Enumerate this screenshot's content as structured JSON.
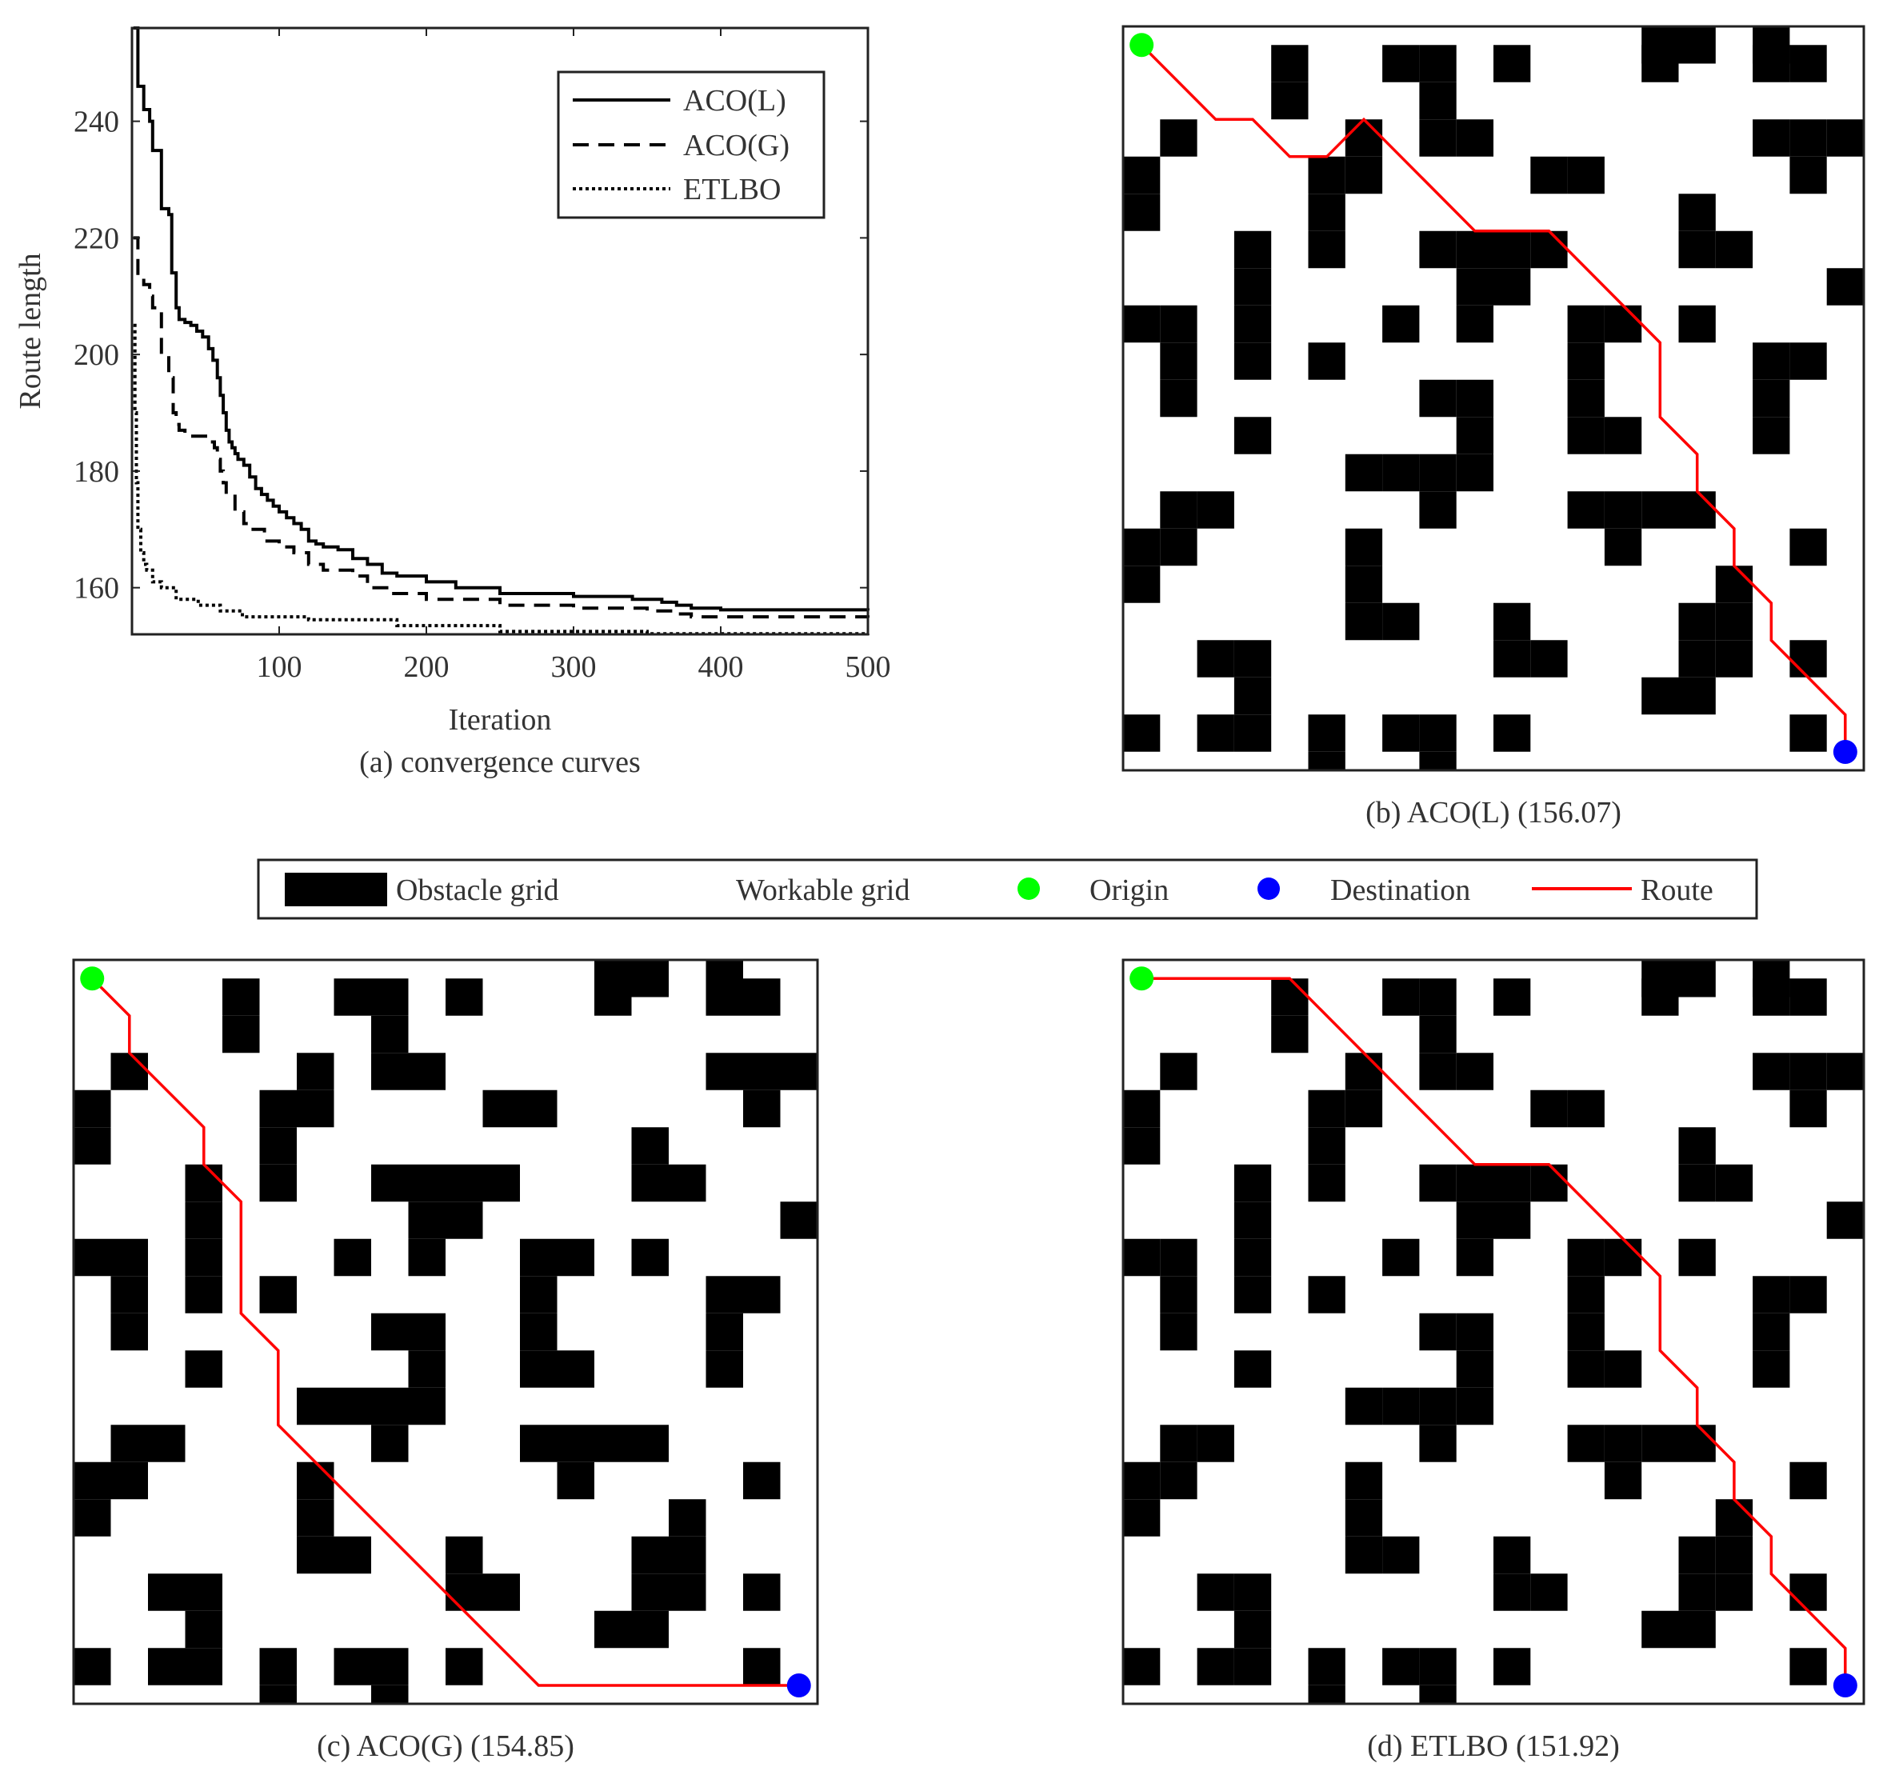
{
  "chart_data": [
    {
      "type": "line",
      "caption": "(a)  convergence curves",
      "xlabel": "Iteration",
      "ylabel": "Route length",
      "xlim": [
        0,
        500
      ],
      "ylim": [
        152,
        256
      ],
      "xticks": [
        100,
        200,
        300,
        400,
        500
      ],
      "yticks": [
        160,
        180,
        200,
        220,
        240
      ],
      "legend_position": "top-right",
      "grid": false,
      "series": [
        {
          "name": "ACO(L)",
          "style": "solid",
          "color": "#000000",
          "x": [
            1,
            4,
            8,
            12,
            14,
            20,
            25,
            27,
            30,
            32,
            36,
            40,
            44,
            48,
            52,
            55,
            58,
            60,
            62,
            64,
            66,
            68,
            70,
            72,
            76,
            80,
            84,
            88,
            92,
            96,
            100,
            105,
            110,
            115,
            120,
            125,
            130,
            140,
            150,
            160,
            170,
            180,
            200,
            220,
            250,
            300,
            340,
            360,
            370,
            380,
            400,
            500
          ],
          "y": [
            256,
            246,
            242,
            240,
            235,
            225,
            224,
            214,
            208,
            206,
            205.5,
            205,
            204,
            203,
            201,
            199,
            196,
            193,
            190,
            187,
            185,
            184,
            183,
            182,
            181,
            179,
            177,
            176,
            175,
            174,
            173,
            172,
            171,
            170,
            168,
            167.5,
            167,
            166.5,
            165,
            164,
            162.5,
            162,
            161,
            160,
            159,
            158.5,
            158,
            157.5,
            157,
            156.5,
            156.2,
            156.07
          ]
        },
        {
          "name": "ACO(G)",
          "style": "dashed",
          "color": "#000000",
          "x": [
            1,
            4,
            8,
            12,
            14,
            20,
            25,
            28,
            30,
            32,
            36,
            40,
            50,
            56,
            58,
            60,
            62,
            64,
            70,
            76,
            80,
            90,
            100,
            110,
            120,
            130,
            150,
            160,
            175,
            200,
            250,
            300,
            350,
            370,
            380,
            500
          ],
          "y": [
            220,
            213,
            212,
            210,
            208,
            200,
            196,
            190,
            188,
            187,
            186.5,
            186,
            185,
            184,
            182,
            180,
            178,
            176,
            173,
            171,
            170,
            168,
            167,
            166,
            164,
            163,
            162,
            160,
            159,
            158,
            157,
            156.5,
            156,
            155.5,
            155,
            154.85
          ]
        },
        {
          "name": "ETLBO",
          "style": "dotted",
          "color": "#000000",
          "x": [
            1,
            2,
            3,
            4,
            6,
            8,
            10,
            14,
            20,
            30,
            45,
            60,
            75,
            120,
            180,
            250,
            350,
            500
          ],
          "y": [
            205,
            190,
            178,
            170,
            166,
            164,
            163,
            161,
            160,
            158,
            157,
            156,
            155,
            154.5,
            153.5,
            152.5,
            152.1,
            151.92
          ]
        }
      ]
    },
    {
      "type": "heatmap",
      "caption": "(b) ACO(L) (156.07)",
      "grid_size": [
        20,
        20
      ],
      "route_color": "#ff0000",
      "route": [
        [
          0.5,
          0.5
        ],
        [
          2.5,
          2.5
        ],
        [
          3.5,
          2.5
        ],
        [
          4.5,
          3.5
        ],
        [
          5.5,
          3.5
        ],
        [
          6.5,
          2.5
        ],
        [
          9.5,
          5.5
        ],
        [
          11.5,
          5.5
        ],
        [
          14.5,
          8.5
        ],
        [
          14.5,
          10.5
        ],
        [
          15.5,
          11.5
        ],
        [
          15.5,
          12.5
        ],
        [
          16.5,
          13.5
        ],
        [
          16.5,
          14.5
        ],
        [
          17.5,
          15.5
        ],
        [
          17.5,
          16.5
        ],
        [
          19.5,
          18.5
        ],
        [
          19.5,
          19.5
        ]
      ]
    },
    {
      "type": "heatmap",
      "caption": "(c) ACO(G) (154.85)",
      "grid_size": [
        20,
        20
      ],
      "route_color": "#ff0000",
      "route": [
        [
          0.5,
          0.5
        ],
        [
          1.5,
          1.5
        ],
        [
          1.5,
          2.5
        ],
        [
          3.5,
          4.5
        ],
        [
          3.5,
          5.5
        ],
        [
          4.5,
          6.5
        ],
        [
          4.5,
          9.5
        ],
        [
          5.5,
          10.5
        ],
        [
          5.5,
          12.5
        ],
        [
          12.5,
          19.5
        ],
        [
          19.5,
          19.5
        ]
      ]
    },
    {
      "type": "heatmap",
      "caption": "(d) ETLBO (151.92)",
      "grid_size": [
        20,
        20
      ],
      "route_color": "#ff0000",
      "route": [
        [
          0.5,
          0.5
        ],
        [
          4.5,
          0.5
        ],
        [
          9.5,
          5.5
        ],
        [
          11.5,
          5.5
        ],
        [
          14.5,
          8.5
        ],
        [
          14.5,
          10.5
        ],
        [
          15.5,
          11.5
        ],
        [
          15.5,
          12.5
        ],
        [
          16.5,
          13.5
        ],
        [
          16.5,
          14.5
        ],
        [
          17.5,
          15.5
        ],
        [
          17.5,
          16.5
        ],
        [
          19.5,
          18.5
        ],
        [
          19.5,
          19.5
        ]
      ]
    }
  ],
  "grid_map": {
    "cols": 20,
    "rows": 20,
    "obstacle_color": "#000000",
    "obstacles": [
      [
        14,
        0
      ],
      [
        15,
        0
      ],
      [
        17,
        0
      ],
      [
        4,
        1
      ],
      [
        7,
        1
      ],
      [
        8,
        1
      ],
      [
        10,
        1
      ],
      [
        14,
        1
      ],
      [
        17,
        1
      ],
      [
        18,
        1
      ],
      [
        4,
        2
      ],
      [
        8,
        2
      ],
      [
        1,
        3
      ],
      [
        8,
        3
      ],
      [
        9,
        3
      ],
      [
        6,
        3
      ],
      [
        17,
        3
      ],
      [
        18,
        3
      ],
      [
        19,
        3
      ],
      [
        0,
        4
      ],
      [
        5,
        4
      ],
      [
        6,
        4
      ],
      [
        11,
        4
      ],
      [
        12,
        4
      ],
      [
        18,
        4
      ],
      [
        0,
        5
      ],
      [
        5,
        5
      ],
      [
        15,
        5
      ],
      [
        3,
        6
      ],
      [
        5,
        6
      ],
      [
        8,
        6
      ],
      [
        9,
        6
      ],
      [
        10,
        6
      ],
      [
        11,
        6
      ],
      [
        15,
        6
      ],
      [
        16,
        6
      ],
      [
        3,
        7
      ],
      [
        9,
        7
      ],
      [
        10,
        7
      ],
      [
        19,
        7
      ],
      [
        0,
        8
      ],
      [
        1,
        8
      ],
      [
        3,
        8
      ],
      [
        7,
        8
      ],
      [
        9,
        8
      ],
      [
        12,
        8
      ],
      [
        13,
        8
      ],
      [
        15,
        8
      ],
      [
        1,
        9
      ],
      [
        3,
        9
      ],
      [
        5,
        9
      ],
      [
        12,
        9
      ],
      [
        17,
        9
      ],
      [
        18,
        9
      ],
      [
        1,
        10
      ],
      [
        8,
        10
      ],
      [
        9,
        10
      ],
      [
        12,
        10
      ],
      [
        17,
        10
      ],
      [
        3,
        11
      ],
      [
        9,
        11
      ],
      [
        12,
        11
      ],
      [
        13,
        11
      ],
      [
        17,
        11
      ],
      [
        6,
        12
      ],
      [
        7,
        12
      ],
      [
        8,
        12
      ],
      [
        9,
        12
      ],
      [
        1,
        13
      ],
      [
        2,
        13
      ],
      [
        8,
        13
      ],
      [
        12,
        13
      ],
      [
        13,
        13
      ],
      [
        14,
        13
      ],
      [
        15,
        13
      ],
      [
        0,
        14
      ],
      [
        1,
        14
      ],
      [
        6,
        14
      ],
      [
        13,
        14
      ],
      [
        18,
        14
      ],
      [
        0,
        15
      ],
      [
        6,
        15
      ],
      [
        16,
        15
      ],
      [
        6,
        16
      ],
      [
        7,
        16
      ],
      [
        10,
        16
      ],
      [
        15,
        16
      ],
      [
        16,
        16
      ],
      [
        2,
        17
      ],
      [
        3,
        17
      ],
      [
        10,
        17
      ],
      [
        11,
        17
      ],
      [
        15,
        17
      ],
      [
        16,
        17
      ],
      [
        18,
        17
      ],
      [
        3,
        18
      ],
      [
        14,
        18
      ],
      [
        15,
        18
      ],
      [
        0,
        19
      ],
      [
        2,
        19
      ],
      [
        3,
        19
      ],
      [
        5,
        19
      ],
      [
        7,
        19
      ],
      [
        8,
        19
      ],
      [
        10,
        19
      ],
      [
        18,
        19
      ],
      [
        5,
        20
      ],
      [
        8,
        20
      ]
    ]
  },
  "legend": {
    "items": [
      {
        "label": "Obstacle grid",
        "marker": "black-rect"
      },
      {
        "label": "Workable grid",
        "marker": "white-rect"
      },
      {
        "label": "Origin",
        "marker": "green-dot",
        "color": "#00ff00"
      },
      {
        "label": "Destination",
        "marker": "blue-dot",
        "color": "#0000ff"
      },
      {
        "label": "Route",
        "marker": "red-line",
        "color": "#ff0000"
      }
    ]
  }
}
